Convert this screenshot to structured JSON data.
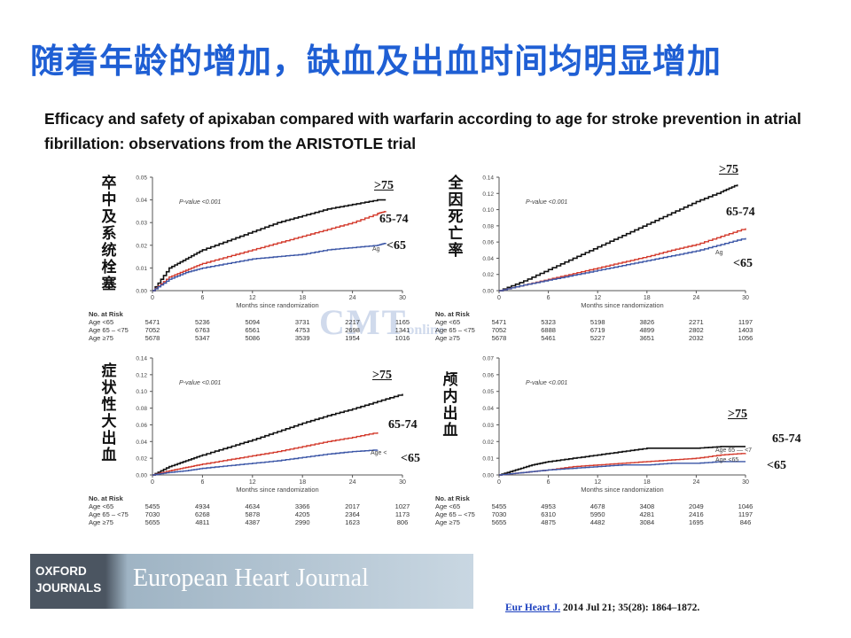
{
  "slide": {
    "title": "随着年龄的增加，缺血及出血时间均明显增加",
    "subtitle": "Efficacy and safety of apixaban compared with warfarin according to age for stroke prevention in atrial fibrillation: observations from the ARISTOTLE trial",
    "watermark": "CMT",
    "watermark_sub": "online"
  },
  "banner": {
    "logo_line1": "OXFORD",
    "logo_line2": "JOURNALS",
    "journal_name": "European Heart Journal"
  },
  "citation": {
    "journal": "Eur Heart J.",
    "details": " 2014 Jul 21; 35(28): 1864–1872."
  },
  "colors": {
    "title": "#1f5fd4",
    "ge75": "#111111",
    "age65_74": "#d33a2c",
    "lt65": "#3a55a6"
  },
  "chart_data": [
    {
      "type": "line",
      "cn_label": "卒中及系统栓塞",
      "pvalue": "P-value <0.001",
      "xlabel": "Months since randomization",
      "xticks": [
        0,
        6,
        12,
        18,
        24,
        30
      ],
      "xtick_labels": [
        "0",
        "6",
        "12",
        "18",
        "24",
        "30"
      ],
      "yticks": [
        0,
        0.01,
        0.02,
        0.03,
        0.04,
        0.05
      ],
      "ytick_labels": [
        "0.00",
        "0.01",
        "0.02",
        "0.03",
        "0.04",
        "0.05"
      ],
      "xlim": [
        0,
        30
      ],
      "ylim": [
        0,
        0.05
      ],
      "series_labels": [
        ">75",
        "65-74",
        "<65"
      ],
      "inline_label": "Ag",
      "series": [
        {
          "key": "ge75",
          "x": [
            0,
            2,
            4,
            6,
            9,
            12,
            15,
            18,
            21,
            24,
            27,
            28
          ],
          "y": [
            0,
            0.01,
            0.014,
            0.018,
            0.022,
            0.026,
            0.03,
            0.033,
            0.036,
            0.038,
            0.04,
            0.04
          ]
        },
        {
          "key": "age65_74",
          "x": [
            0,
            2,
            4,
            6,
            9,
            12,
            15,
            18,
            21,
            24,
            27,
            28
          ],
          "y": [
            0,
            0.006,
            0.009,
            0.012,
            0.015,
            0.018,
            0.021,
            0.024,
            0.027,
            0.03,
            0.034,
            0.035
          ]
        },
        {
          "key": "lt65",
          "x": [
            0,
            2,
            4,
            6,
            9,
            12,
            15,
            18,
            21,
            24,
            27,
            28
          ],
          "y": [
            0,
            0.005,
            0.008,
            0.01,
            0.012,
            0.014,
            0.015,
            0.016,
            0.018,
            0.019,
            0.02,
            0.021
          ]
        }
      ],
      "risk_table": {
        "header": "No. at Risk",
        "rows": [
          {
            "label": "Age <65",
            "values": [
              "5471",
              "5236",
              "5094",
              "3731",
              "2217",
              "1165"
            ]
          },
          {
            "label": "Age 65 – <75",
            "values": [
              "7052",
              "6763",
              "6561",
              "4753",
              "2698",
              "1341"
            ]
          },
          {
            "label": "Age ≥75",
            "values": [
              "5678",
              "5347",
              "5086",
              "3539",
              "1954",
              "1016"
            ]
          }
        ]
      }
    },
    {
      "type": "line",
      "cn_label": "全因死亡率",
      "pvalue": "P-value <0.001",
      "xlabel": "Months since randomization",
      "xticks": [
        0,
        6,
        12,
        18,
        24,
        30
      ],
      "xtick_labels": [
        "0",
        "6",
        "12",
        "18",
        "24",
        "30"
      ],
      "yticks": [
        0,
        0.02,
        0.04,
        0.06,
        0.08,
        0.1,
        0.12,
        0.14
      ],
      "ytick_labels": [
        "0.00",
        "0.02",
        "0.04",
        "0.06",
        "0.08",
        "0.10",
        "0.12",
        "0.14"
      ],
      "xlim": [
        0,
        30
      ],
      "ylim": [
        0,
        0.14
      ],
      "series_labels": [
        ">75",
        "65-74",
        "<65"
      ],
      "inline_label": "Ag",
      "series": [
        {
          "key": "ge75",
          "x": [
            0,
            3,
            6,
            9,
            12,
            15,
            18,
            21,
            24,
            27,
            29
          ],
          "y": [
            0,
            0.012,
            0.026,
            0.04,
            0.054,
            0.068,
            0.082,
            0.096,
            0.11,
            0.122,
            0.131
          ]
        },
        {
          "key": "age65_74",
          "x": [
            0,
            3,
            6,
            9,
            12,
            15,
            18,
            21,
            24,
            27,
            30
          ],
          "y": [
            0,
            0.007,
            0.014,
            0.021,
            0.028,
            0.035,
            0.042,
            0.05,
            0.057,
            0.067,
            0.077
          ]
        },
        {
          "key": "lt65",
          "x": [
            0,
            3,
            6,
            9,
            12,
            15,
            18,
            21,
            24,
            27,
            30
          ],
          "y": [
            0,
            0.007,
            0.013,
            0.019,
            0.025,
            0.031,
            0.037,
            0.043,
            0.049,
            0.057,
            0.065
          ]
        }
      ],
      "risk_table": {
        "header": "No. at Risk",
        "rows": [
          {
            "label": "Age <65",
            "values": [
              "5471",
              "5323",
              "5198",
              "3826",
              "2271",
              "1197"
            ]
          },
          {
            "label": "Age 65 – <75",
            "values": [
              "7052",
              "6888",
              "6719",
              "4899",
              "2802",
              "1403"
            ]
          },
          {
            "label": "Age ≥75",
            "values": [
              "5678",
              "5461",
              "5227",
              "3651",
              "2032",
              "1056"
            ]
          }
        ]
      }
    },
    {
      "type": "line",
      "cn_label": "症状性大出血",
      "pvalue": "P-value <0.001",
      "xlabel": "Months since randomization",
      "xticks": [
        0,
        6,
        12,
        18,
        24,
        30
      ],
      "xtick_labels": [
        "0",
        "6",
        "12",
        "18",
        "24",
        "30"
      ],
      "yticks": [
        0,
        0.02,
        0.04,
        0.06,
        0.08,
        0.1,
        0.12,
        0.14
      ],
      "ytick_labels": [
        "0.00",
        "0.02",
        "0.04",
        "0.06",
        "0.08",
        "0.10",
        "0.12",
        "0.14"
      ],
      "xlim": [
        0,
        30
      ],
      "ylim": [
        0,
        0.14
      ],
      "series_labels": [
        ">75",
        "65-74",
        "<65"
      ],
      "inline_label": "Age <",
      "series": [
        {
          "key": "ge75",
          "x": [
            0,
            2,
            4,
            6,
            9,
            12,
            15,
            18,
            21,
            24,
            27,
            30
          ],
          "y": [
            0,
            0.01,
            0.017,
            0.024,
            0.033,
            0.042,
            0.052,
            0.062,
            0.071,
            0.079,
            0.088,
            0.097
          ]
        },
        {
          "key": "age65_74",
          "x": [
            0,
            2,
            4,
            6,
            9,
            12,
            15,
            18,
            21,
            24,
            27
          ],
          "y": [
            0,
            0.005,
            0.009,
            0.013,
            0.018,
            0.023,
            0.028,
            0.034,
            0.04,
            0.045,
            0.051
          ]
        },
        {
          "key": "lt65",
          "x": [
            0,
            2,
            4,
            6,
            9,
            12,
            15,
            18,
            21,
            24,
            27
          ],
          "y": [
            0,
            0.003,
            0.005,
            0.008,
            0.011,
            0.014,
            0.017,
            0.021,
            0.025,
            0.028,
            0.03
          ]
        }
      ],
      "risk_table": {
        "header": "No. at Risk",
        "rows": [
          {
            "label": "Age <65",
            "values": [
              "5455",
              "4934",
              "4634",
              "3366",
              "2017",
              "1027"
            ]
          },
          {
            "label": "Age 65 – <75",
            "values": [
              "7030",
              "6268",
              "5878",
              "4205",
              "2364",
              "1173"
            ]
          },
          {
            "label": "Age ≥75",
            "values": [
              "5655",
              "4811",
              "4387",
              "2990",
              "1623",
              "806"
            ]
          }
        ]
      }
    },
    {
      "type": "line",
      "cn_label": "颅内出血",
      "pvalue": "P-value <0.001",
      "xlabel": "Months since randomization",
      "xticks": [
        0,
        6,
        12,
        18,
        24,
        30
      ],
      "xtick_labels": [
        "0",
        "6",
        "12",
        "18",
        "24",
        "30"
      ],
      "yticks": [
        0,
        0.01,
        0.02,
        0.03,
        0.04,
        0.05,
        0.06,
        0.07
      ],
      "ytick_labels": [
        "0.00",
        "0.01",
        "0.02",
        "0.03",
        "0.04",
        "0.05",
        "0.06",
        "0.07"
      ],
      "xlim": [
        0,
        30
      ],
      "ylim": [
        0,
        0.07
      ],
      "series_labels": [
        ">75",
        "65-74",
        "<65"
      ],
      "inline_labels": [
        "Age 65 — <7",
        "Age <65"
      ],
      "series": [
        {
          "key": "ge75",
          "x": [
            0,
            2,
            4,
            6,
            9,
            12,
            15,
            18,
            21,
            24,
            27,
            30
          ],
          "y": [
            0,
            0.003,
            0.006,
            0.008,
            0.01,
            0.012,
            0.014,
            0.016,
            0.016,
            0.016,
            0.017,
            0.017
          ]
        },
        {
          "key": "age65_74",
          "x": [
            0,
            2,
            4,
            6,
            9,
            12,
            15,
            18,
            21,
            24,
            27,
            30
          ],
          "y": [
            0,
            0.001,
            0.002,
            0.003,
            0.005,
            0.006,
            0.007,
            0.008,
            0.009,
            0.01,
            0.012,
            0.013
          ]
        },
        {
          "key": "lt65",
          "x": [
            0,
            2,
            4,
            6,
            9,
            12,
            15,
            18,
            21,
            24,
            27,
            30
          ],
          "y": [
            0,
            0.001,
            0.002,
            0.003,
            0.004,
            0.005,
            0.006,
            0.006,
            0.007,
            0.007,
            0.008,
            0.008
          ]
        }
      ],
      "risk_table": {
        "header": "No. at Risk",
        "rows": [
          {
            "label": "Age <65",
            "values": [
              "5455",
              "4953",
              "4678",
              "3408",
              "2049",
              "1046"
            ]
          },
          {
            "label": "Age 65 – <75",
            "values": [
              "7030",
              "6310",
              "5950",
              "4281",
              "2416",
              "1197"
            ]
          },
          {
            "label": "Age ≥75",
            "values": [
              "5655",
              "4875",
              "4482",
              "3084",
              "1695",
              "846"
            ]
          }
        ]
      }
    }
  ]
}
